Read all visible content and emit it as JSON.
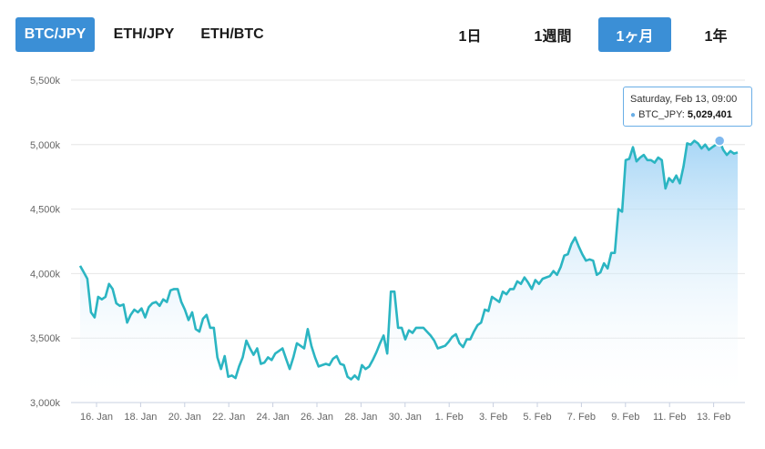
{
  "pair_tabs": [
    {
      "label": "BTC/JPY",
      "active": true
    },
    {
      "label": "ETH/JPY",
      "active": false
    },
    {
      "label": "ETH/BTC",
      "active": false
    }
  ],
  "range_tabs": [
    {
      "label": "1日",
      "active": false
    },
    {
      "label": "1週間",
      "active": false
    },
    {
      "label": "1ヶ月",
      "active": true
    },
    {
      "label": "1年",
      "active": false
    }
  ],
  "tooltip": {
    "date": "Saturday, Feb 13, 09:00",
    "series": "BTC_JPY",
    "value": "5,029,401"
  },
  "colors": {
    "line": "#2bb5c2",
    "accent": "#3b8fd6",
    "fill_top": "#9fd2f5"
  },
  "chart_data": {
    "type": "area",
    "series": [
      {
        "name": "BTC_JPY"
      }
    ],
    "ylim": [
      3000000,
      5500000
    ],
    "yticks": [
      "3,000k",
      "3,500k",
      "4,000k",
      "4,500k",
      "5,000k",
      "5,500k"
    ],
    "xticks": [
      "16. Jan",
      "18. Jan",
      "20. Jan",
      "22. Jan",
      "24. Jan",
      "26. Jan",
      "28. Jan",
      "30. Jan",
      "1. Feb",
      "3. Feb",
      "5. Feb",
      "7. Feb",
      "9. Feb",
      "11. Feb",
      "13. Feb"
    ],
    "values": [
      4060000,
      4010000,
      3960000,
      3700000,
      3660000,
      3820000,
      3800000,
      3820000,
      3920000,
      3880000,
      3770000,
      3750000,
      3760000,
      3620000,
      3680000,
      3720000,
      3700000,
      3730000,
      3660000,
      3740000,
      3770000,
      3780000,
      3750000,
      3800000,
      3780000,
      3870000,
      3880000,
      3880000,
      3780000,
      3720000,
      3640000,
      3700000,
      3570000,
      3550000,
      3650000,
      3680000,
      3580000,
      3580000,
      3350000,
      3260000,
      3360000,
      3200000,
      3210000,
      3190000,
      3280000,
      3350000,
      3480000,
      3420000,
      3370000,
      3420000,
      3300000,
      3310000,
      3350000,
      3330000,
      3380000,
      3400000,
      3420000,
      3340000,
      3260000,
      3350000,
      3460000,
      3440000,
      3420000,
      3570000,
      3440000,
      3350000,
      3280000,
      3290000,
      3300000,
      3290000,
      3340000,
      3360000,
      3300000,
      3290000,
      3200000,
      3180000,
      3210000,
      3180000,
      3290000,
      3260000,
      3280000,
      3330000,
      3390000,
      3460000,
      3520000,
      3380000,
      3860000,
      3860000,
      3580000,
      3580000,
      3490000,
      3560000,
      3540000,
      3580000,
      3580000,
      3580000,
      3550000,
      3520000,
      3480000,
      3420000,
      3430000,
      3440000,
      3470000,
      3510000,
      3530000,
      3460000,
      3430000,
      3490000,
      3490000,
      3550000,
      3600000,
      3620000,
      3720000,
      3710000,
      3820000,
      3800000,
      3780000,
      3860000,
      3840000,
      3880000,
      3880000,
      3940000,
      3920000,
      3970000,
      3930000,
      3880000,
      3950000,
      3920000,
      3960000,
      3970000,
      3980000,
      4020000,
      3990000,
      4050000,
      4140000,
      4150000,
      4230000,
      4280000,
      4210000,
      4150000,
      4100000,
      4110000,
      4100000,
      3990000,
      4010000,
      4080000,
      4040000,
      4160000,
      4160000,
      4500000,
      4480000,
      4880000,
      4890000,
      4980000,
      4870000,
      4900000,
      4920000,
      4880000,
      4880000,
      4860000,
      4900000,
      4880000,
      4660000,
      4740000,
      4710000,
      4760000,
      4700000,
      4830000,
      5010000,
      5000000,
      5030000,
      5010000,
      4970000,
      5000000,
      4960000,
      4980000,
      5000000,
      5029401,
      4960000,
      4920000,
      4950000,
      4930000,
      4940000
    ]
  }
}
